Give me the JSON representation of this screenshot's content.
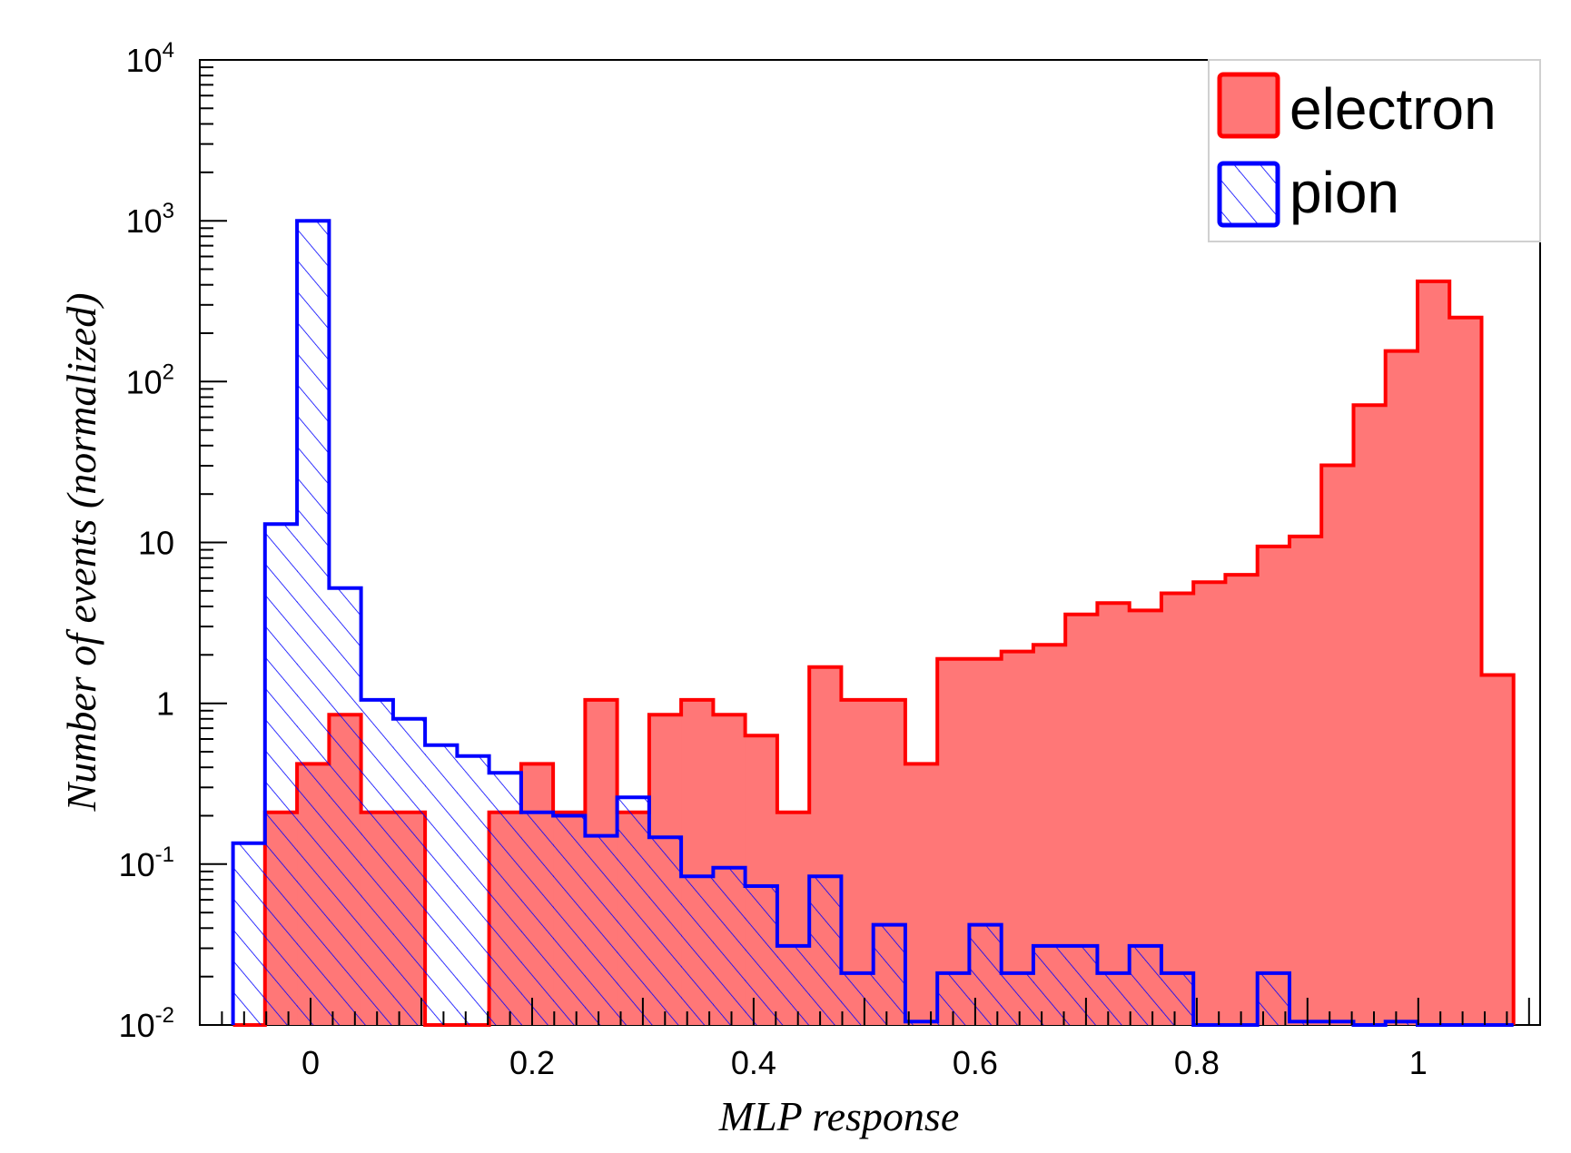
{
  "chart_data": {
    "type": "histogram",
    "title": "",
    "xlabel": "MLP response",
    "ylabel": "Number of events (normalized)",
    "xlim": [
      -0.1,
      1.11
    ],
    "ylim": [
      0.01,
      10000
    ],
    "yscale": "log",
    "grid": false,
    "legend_position": "top-right",
    "x_ticks": [
      {
        "value": 0,
        "label": "0"
      },
      {
        "value": 0.2,
        "label": "0.2"
      },
      {
        "value": 0.4,
        "label": "0.4"
      },
      {
        "value": 0.6,
        "label": "0.6"
      },
      {
        "value": 0.8,
        "label": "0.8"
      },
      {
        "value": 1,
        "label": "1"
      }
    ],
    "y_ticks": [
      {
        "value": 0.01,
        "base": "10",
        "exp": "-2"
      },
      {
        "value": 0.1,
        "base": "10",
        "exp": "-1"
      },
      {
        "value": 1,
        "base": "1",
        "exp": ""
      },
      {
        "value": 10,
        "base": "10",
        "exp": ""
      },
      {
        "value": 100,
        "base": "10",
        "exp": "2"
      },
      {
        "value": 1000,
        "base": "10",
        "exp": "3"
      },
      {
        "value": 10000,
        "base": "10",
        "exp": "4"
      }
    ],
    "bin_start": -0.07,
    "bin_width": 0.0289,
    "series": [
      {
        "name": "electron",
        "color": "#ff0000",
        "fill": "#ff7777",
        "style": "solid",
        "values": [
          0,
          0.21,
          0.42,
          0.85,
          0.21,
          0.21,
          0,
          0,
          0.21,
          0.42,
          0.21,
          1.05,
          0.21,
          0.85,
          1.05,
          0.85,
          0.63,
          0.21,
          1.68,
          1.05,
          1.05,
          0.42,
          1.89,
          1.89,
          2.1,
          2.31,
          3.57,
          4.2,
          3.78,
          4.83,
          5.67,
          6.3,
          9.45,
          10.9,
          30.2,
          71.4,
          155,
          420,
          250,
          1.5
        ]
      },
      {
        "name": "pion",
        "color": "#0000ff",
        "fill": "none",
        "style": "hatched",
        "values": [
          0.135,
          13,
          1000,
          5.2,
          1.05,
          0.8,
          0.55,
          0.47,
          0.37,
          0.21,
          0.2,
          0.15,
          0.26,
          0.147,
          0.084,
          0.095,
          0.073,
          0.031,
          0.084,
          0.021,
          0.042,
          0.0105,
          0.021,
          0.042,
          0.021,
          0.031,
          0.031,
          0.021,
          0.031,
          0.021,
          0,
          0,
          0.021,
          0.0105,
          0.0105,
          0,
          0.0105,
          0,
          0,
          0
        ]
      }
    ]
  }
}
